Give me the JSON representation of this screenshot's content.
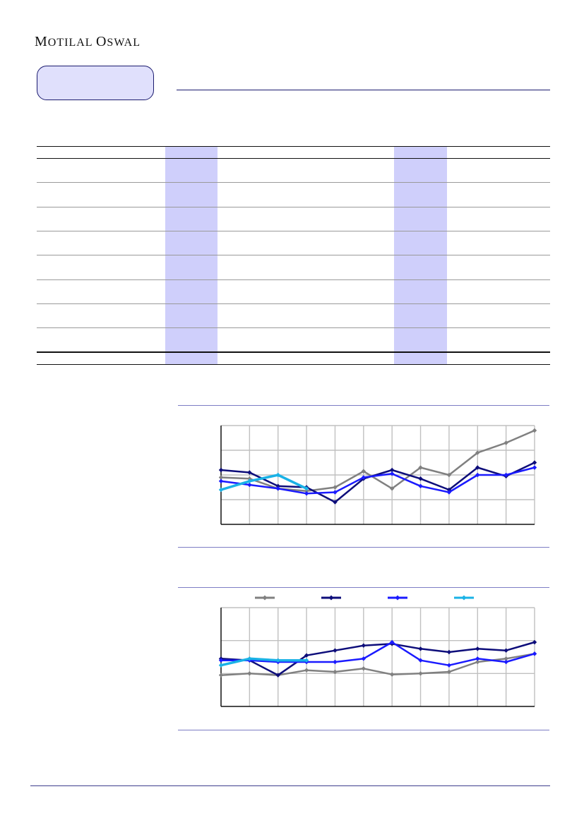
{
  "header": {
    "brand_initial_1": "M",
    "brand_rest_1": "OTILAL ",
    "brand_initial_2": "O",
    "brand_rest_2": "SWAL"
  },
  "table": {
    "row_count": 8,
    "shaded_columns": 2
  },
  "colors": {
    "grey_series": "#808080",
    "navy_series": "#0d0d7a",
    "blue_series": "#1a1aff",
    "cyan_series": "#1ab2e6",
    "rule": "#3d3d8c",
    "shade": "#cfcffb"
  },
  "chart_data": [
    {
      "type": "line",
      "title": "",
      "xlabel": "",
      "ylabel": "",
      "x": [
        1,
        2,
        3,
        4,
        5,
        6,
        7,
        8,
        9,
        10,
        11,
        12
      ],
      "ylim": [
        0,
        4
      ],
      "grid": true,
      "legend": "none",
      "series": [
        {
          "color": "#808080",
          "values": [
            1.9,
            1.85,
            1.45,
            1.35,
            1.5,
            2.15,
            1.45,
            2.3,
            2.0,
            2.9,
            3.3,
            3.8
          ]
        },
        {
          "color": "#0d0d7a",
          "values": [
            2.2,
            2.1,
            1.55,
            1.5,
            0.9,
            1.85,
            2.2,
            1.85,
            1.4,
            2.3,
            1.95,
            2.5
          ]
        },
        {
          "color": "#1a1aff",
          "values": [
            1.75,
            1.6,
            1.45,
            1.25,
            1.3,
            1.9,
            2.05,
            1.55,
            1.3,
            2.0,
            2.0,
            2.3
          ]
        },
        {
          "color": "#1ab2e6",
          "values": [
            1.4,
            1.75,
            2.0,
            1.45,
            null,
            null,
            null,
            null,
            null,
            null,
            null,
            null
          ]
        }
      ]
    },
    {
      "type": "line",
      "title": "",
      "xlabel": "",
      "ylabel": "",
      "x": [
        1,
        2,
        3,
        4,
        5,
        6,
        7,
        8,
        9,
        10,
        11,
        12
      ],
      "ylim": [
        0,
        3
      ],
      "grid": true,
      "legend": "top",
      "series": [
        {
          "color": "#808080",
          "values": [
            0.95,
            1.0,
            0.95,
            1.1,
            1.05,
            1.15,
            0.97,
            1.0,
            1.05,
            1.35,
            1.45,
            1.6
          ]
        },
        {
          "color": "#0d0d7a",
          "values": [
            1.45,
            1.4,
            0.95,
            1.55,
            1.7,
            1.85,
            1.9,
            1.75,
            1.65,
            1.75,
            1.7,
            1.95
          ]
        },
        {
          "color": "#1a1aff",
          "values": [
            1.4,
            1.4,
            1.35,
            1.35,
            1.35,
            1.45,
            1.95,
            1.4,
            1.25,
            1.45,
            1.35,
            1.6
          ]
        },
        {
          "color": "#1ab2e6",
          "values": [
            1.25,
            1.45,
            1.4,
            1.4,
            null,
            null,
            null,
            null,
            null,
            null,
            null,
            null
          ]
        }
      ]
    }
  ]
}
